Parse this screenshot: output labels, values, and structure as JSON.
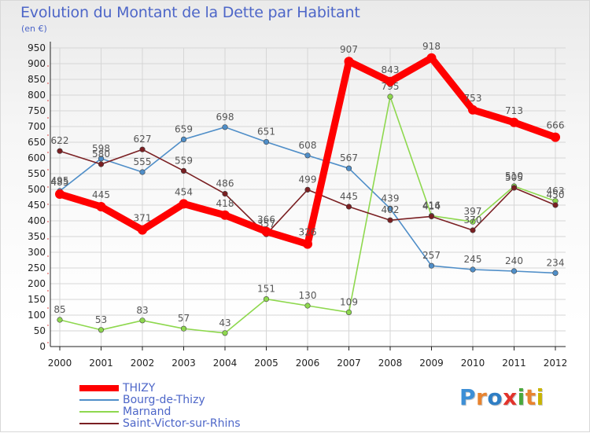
{
  "title": "Evolution du Montant de la Dette par Habitant",
  "unit": "(en €)",
  "brand": {
    "name": "Proxiti",
    "letters": [
      "P",
      "r",
      "o",
      "x",
      "i",
      "t",
      "i"
    ],
    "colors": [
      "#3d8fd6",
      "#e8832f",
      "#2f7ec4",
      "#e2332b",
      "#4aa83c",
      "#e8832f",
      "#c8b400"
    ]
  },
  "chart_data": {
    "type": "line",
    "title": "Evolution du Montant de la Dette par Habitant",
    "xlabel": "",
    "ylabel": "(en €)",
    "categories": [
      "2000",
      "2001",
      "2002",
      "2003",
      "2004",
      "2005",
      "2006",
      "2007",
      "2008",
      "2009",
      "2010",
      "2011",
      "2012"
    ],
    "ylim": [
      0,
      950
    ],
    "yticks": [
      0,
      50,
      100,
      150,
      200,
      250,
      300,
      350,
      400,
      450,
      500,
      550,
      600,
      650,
      700,
      750,
      800,
      850,
      900,
      950
    ],
    "grid": true,
    "legend_position": "bottom-left",
    "series": [
      {
        "name": "Bourg-de-Thizy",
        "color": "#4f8ec8",
        "values": [
          495,
          598,
          555,
          659,
          698,
          651,
          608,
          567,
          439,
          257,
          245,
          240,
          234
        ]
      },
      {
        "name": "Marnand",
        "color": "#8ed84e",
        "values": [
          85,
          53,
          83,
          57,
          43,
          151,
          130,
          109,
          795,
          416,
          397,
          510,
          463
        ]
      },
      {
        "name": "Saint-Victor-sur-Rhins",
        "color": "#7a1f22",
        "values": [
          622,
          580,
          627,
          559,
          486,
          357,
          499,
          445,
          402,
          414,
          370,
          505,
          450
        ]
      },
      {
        "name": "THIZY",
        "color": "#ff0000",
        "values": [
          485,
          445,
          371,
          454,
          418,
          366,
          326,
          907,
          843,
          918,
          753,
          713,
          666
        ]
      }
    ]
  },
  "legend": [
    {
      "label": "THIZY",
      "color": "#ff0000",
      "thickness": 8
    },
    {
      "label": "Bourg-de-Thizy",
      "color": "#4f8ec8",
      "thickness": 2
    },
    {
      "label": "Marnand",
      "color": "#8ed84e",
      "thickness": 2
    },
    {
      "label": "Saint-Victor-sur-Rhins",
      "color": "#7a1f22",
      "thickness": 2
    }
  ]
}
